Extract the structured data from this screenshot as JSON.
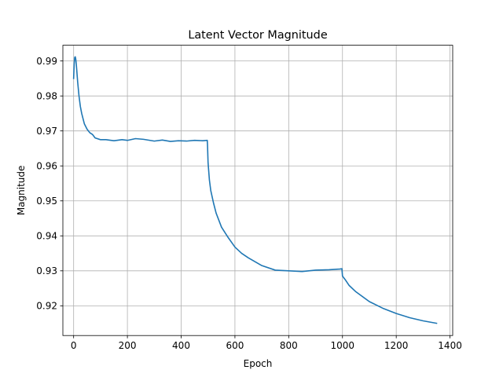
{
  "chart_data": {
    "type": "line",
    "title": "Latent Vector Magnitude",
    "xlabel": "Epoch",
    "ylabel": "Magnitude",
    "xlim": [
      -40,
      1410
    ],
    "ylim": [
      0.9115,
      0.9945
    ],
    "grid": true,
    "xticks": [
      0,
      200,
      400,
      600,
      800,
      1000,
      1200,
      1400
    ],
    "xtick_labels": [
      "0",
      "200",
      "400",
      "600",
      "800",
      "1000",
      "1200",
      "1400"
    ],
    "yticks": [
      0.92,
      0.93,
      0.94,
      0.95,
      0.96,
      0.97,
      0.98,
      0.99
    ],
    "ytick_labels": [
      "0.92",
      "0.93",
      "0.94",
      "0.95",
      "0.96",
      "0.97",
      "0.98",
      "0.99"
    ],
    "series": [
      {
        "color": "#1f77b4",
        "x": [
          0,
          2,
          4,
          6,
          8,
          10,
          15,
          20,
          25,
          30,
          40,
          50,
          60,
          70,
          80,
          100,
          120,
          150,
          180,
          200,
          230,
          260,
          300,
          330,
          360,
          390,
          420,
          450,
          480,
          497,
          498,
          500,
          505,
          510,
          520,
          530,
          550,
          575,
          600,
          625,
          650,
          700,
          750,
          800,
          850,
          900,
          950,
          990,
          998,
          1000,
          1010,
          1025,
          1050,
          1100,
          1150,
          1200,
          1250,
          1300,
          1350
        ],
        "y": [
          0.985,
          0.989,
          0.991,
          0.9912,
          0.9905,
          0.989,
          0.984,
          0.98,
          0.977,
          0.975,
          0.972,
          0.9705,
          0.9695,
          0.969,
          0.968,
          0.9675,
          0.9675,
          0.9672,
          0.9675,
          0.9673,
          0.9678,
          0.9676,
          0.9671,
          0.9674,
          0.967,
          0.9672,
          0.9671,
          0.9673,
          0.9672,
          0.9673,
          0.966,
          0.961,
          0.956,
          0.953,
          0.9495,
          0.9465,
          0.9425,
          0.9395,
          0.9368,
          0.935,
          0.9337,
          0.9315,
          0.9302,
          0.93,
          0.9298,
          0.9302,
          0.9303,
          0.9305,
          0.9306,
          0.9285,
          0.9275,
          0.9258,
          0.924,
          0.9212,
          0.9193,
          0.9178,
          0.9166,
          0.9157,
          0.915
        ]
      }
    ]
  }
}
